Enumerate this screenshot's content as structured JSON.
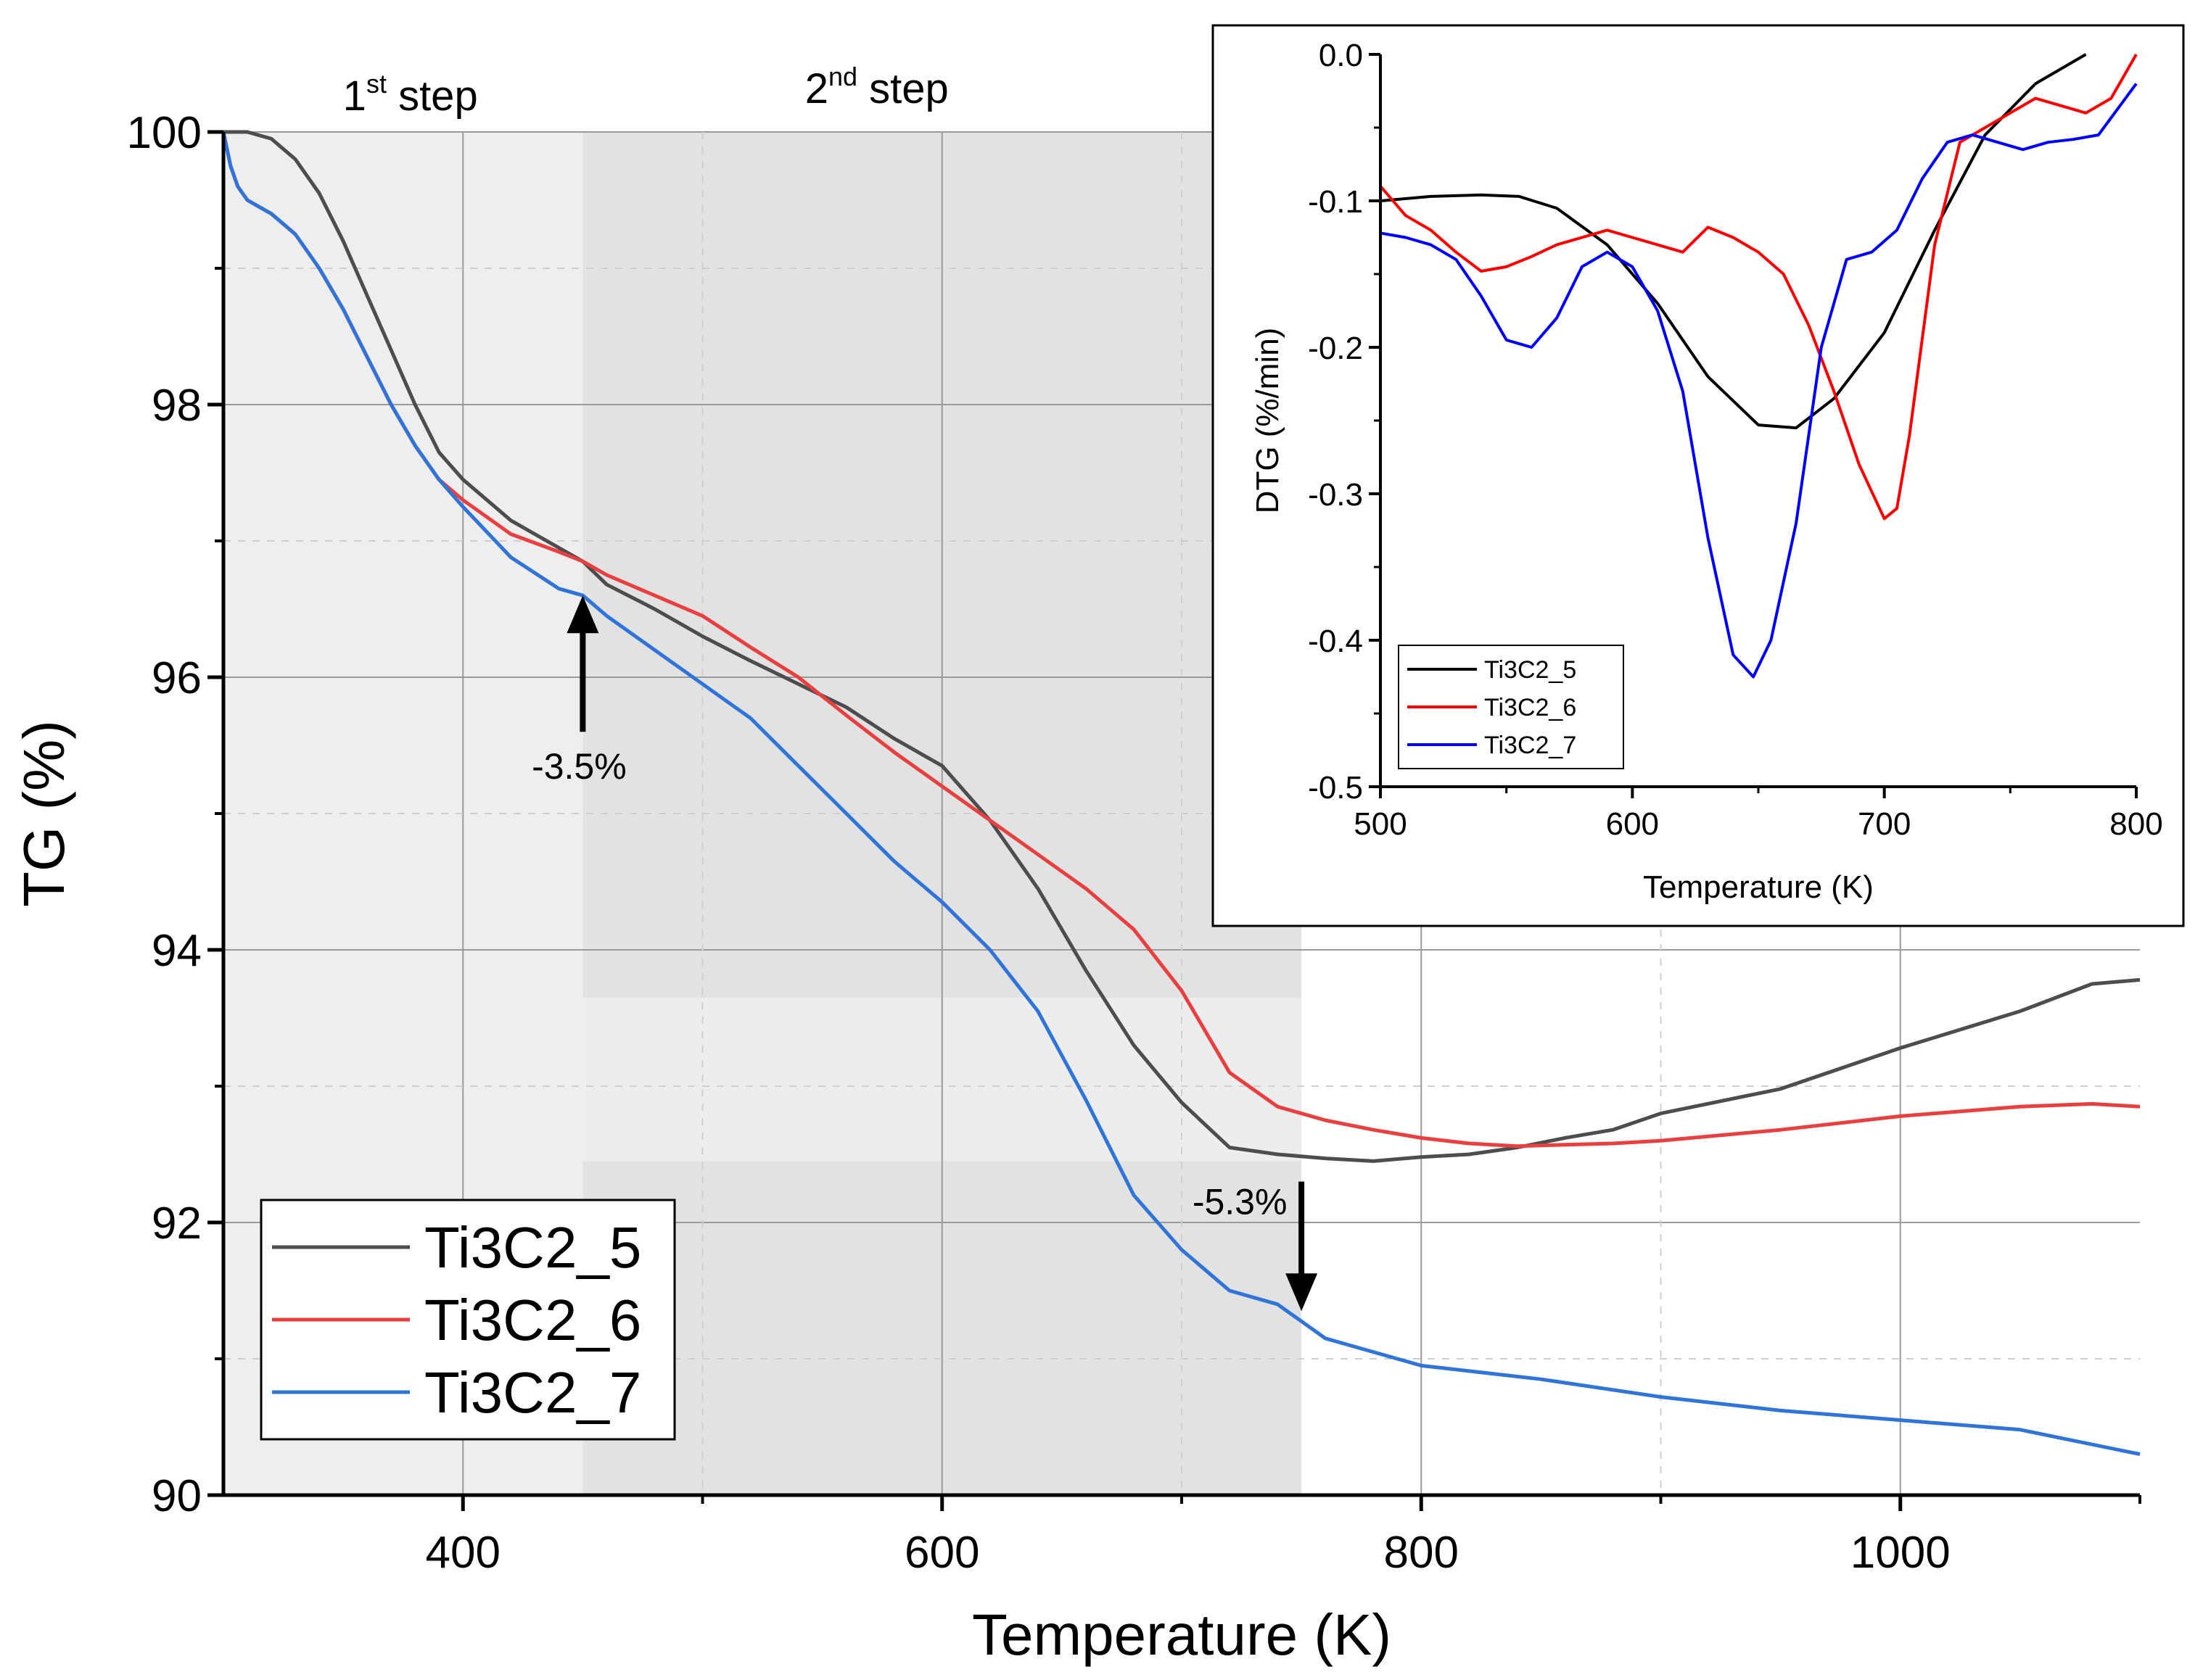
{
  "chart_data": [
    {
      "type": "line",
      "xlabel": "Temperature (K)",
      "ylabel": "TG (%)",
      "xlim": [
        300,
        1100
      ],
      "ylim": [
        90,
        100
      ],
      "xticks": [
        400,
        600,
        800,
        1000
      ],
      "yticks": [
        90,
        92,
        94,
        96,
        98,
        100
      ],
      "xtick_labels": [
        "400",
        "600",
        "800",
        "1000"
      ],
      "ytick_labels": [
        "90",
        "92",
        "94",
        "96",
        "98",
        "100"
      ],
      "grid": true,
      "legend_position": "bottom-left",
      "regions": [
        {
          "label_base": "1",
          "label_sup": "st",
          "label_rest": " step",
          "x_range": [
            300,
            450
          ],
          "color": "#eeeeee"
        },
        {
          "label_base": "2",
          "label_sup": "nd",
          "label_rest": " step",
          "x_range": [
            450,
            750
          ],
          "color": "#e2e2e2"
        }
      ],
      "annotations": [
        {
          "text": "-3.5%",
          "x": 450,
          "y_from": 95.6,
          "y_to": 96.6,
          "direction": "up"
        },
        {
          "text": "-5.3%",
          "x": 750,
          "y_from": 92.3,
          "y_to": 91.35,
          "direction": "down"
        }
      ],
      "series": [
        {
          "name": "Ti3C2_5",
          "color": "#4d4d4d",
          "x": [
            300,
            305,
            310,
            320,
            330,
            340,
            350,
            360,
            370,
            380,
            390,
            400,
            420,
            440,
            450,
            460,
            480,
            500,
            520,
            540,
            560,
            580,
            600,
            620,
            640,
            660,
            680,
            700,
            720,
            740,
            760,
            780,
            800,
            820,
            840,
            860,
            880,
            900,
            950,
            1000,
            1050,
            1080,
            1100
          ],
          "y": [
            100,
            100,
            100,
            99.95,
            99.8,
            99.55,
            99.2,
            98.8,
            98.4,
            98.0,
            97.65,
            97.45,
            97.15,
            96.95,
            96.85,
            96.68,
            96.5,
            96.3,
            96.12,
            95.95,
            95.78,
            95.55,
            95.35,
            94.95,
            94.45,
            93.85,
            93.3,
            92.88,
            92.55,
            92.5,
            92.47,
            92.45,
            92.48,
            92.5,
            92.55,
            92.62,
            92.68,
            92.8,
            92.98,
            93.28,
            93.55,
            93.75,
            93.78
          ]
        },
        {
          "name": "Ti3C2_6",
          "color": "#e84040",
          "x": [
            300,
            303,
            306,
            310,
            320,
            330,
            340,
            350,
            360,
            370,
            380,
            390,
            400,
            420,
            440,
            450,
            460,
            480,
            500,
            520,
            540,
            560,
            580,
            600,
            620,
            640,
            660,
            680,
            700,
            720,
            740,
            760,
            780,
            800,
            820,
            840,
            860,
            880,
            900,
            950,
            1000,
            1050,
            1080,
            1100
          ],
          "y": [
            100,
            99.75,
            99.6,
            99.5,
            99.4,
            99.25,
            99.0,
            98.7,
            98.35,
            98.0,
            97.7,
            97.45,
            97.3,
            97.05,
            96.92,
            96.85,
            96.75,
            96.6,
            96.45,
            96.22,
            96.0,
            95.72,
            95.45,
            95.2,
            94.95,
            94.7,
            94.45,
            94.15,
            93.7,
            93.1,
            92.85,
            92.75,
            92.68,
            92.62,
            92.58,
            92.56,
            92.57,
            92.58,
            92.6,
            92.68,
            92.78,
            92.85,
            92.87,
            92.85
          ]
        },
        {
          "name": "Ti3C2_7",
          "color": "#2f74d6",
          "x": [
            300,
            303,
            306,
            310,
            320,
            330,
            340,
            350,
            360,
            370,
            380,
            390,
            400,
            420,
            440,
            450,
            460,
            480,
            500,
            520,
            540,
            560,
            580,
            600,
            620,
            640,
            660,
            680,
            700,
            720,
            740,
            760,
            780,
            800,
            850,
            900,
            950,
            1000,
            1050,
            1100
          ],
          "y": [
            100,
            99.75,
            99.6,
            99.5,
            99.4,
            99.25,
            99.0,
            98.7,
            98.35,
            98.0,
            97.7,
            97.45,
            97.25,
            96.88,
            96.65,
            96.6,
            96.45,
            96.2,
            95.95,
            95.7,
            95.35,
            95.0,
            94.65,
            94.35,
            94.0,
            93.55,
            92.9,
            92.2,
            91.8,
            91.5,
            91.4,
            91.15,
            91.05,
            90.95,
            90.85,
            90.72,
            90.62,
            90.55,
            90.48,
            90.3
          ]
        }
      ]
    },
    {
      "type": "line",
      "xlabel": "Temperature (K)",
      "ylabel": "DTG (%/min)",
      "xlim": [
        500,
        800
      ],
      "ylim": [
        -0.5,
        0.0
      ],
      "xticks": [
        500,
        600,
        700,
        800
      ],
      "yticks": [
        0.0,
        -0.1,
        -0.2,
        -0.3,
        -0.4,
        -0.5
      ],
      "xtick_labels": [
        "500",
        "600",
        "700",
        "800"
      ],
      "ytick_labels": [
        "0.0",
        "-0.1",
        "-0.2",
        "-0.3",
        "-0.4",
        "-0.5"
      ],
      "grid": false,
      "legend_position": "bottom-left",
      "series": [
        {
          "name": "Ti3C2_5",
          "color": "#000000",
          "x": [
            500,
            520,
            540,
            555,
            570,
            590,
            610,
            630,
            650,
            665,
            680,
            700,
            720,
            740,
            760,
            780
          ],
          "y": [
            -0.1,
            -0.097,
            -0.096,
            -0.097,
            -0.105,
            -0.13,
            -0.17,
            -0.22,
            -0.253,
            -0.255,
            -0.235,
            -0.19,
            -0.12,
            -0.055,
            -0.02,
            0.0
          ]
        },
        {
          "name": "Ti3C2_6",
          "color": "#ff0000",
          "x": [
            500,
            505,
            510,
            520,
            530,
            540,
            550,
            560,
            570,
            580,
            590,
            600,
            610,
            620,
            630,
            640,
            650,
            660,
            670,
            680,
            690,
            700,
            705,
            710,
            720,
            730,
            740,
            750,
            760,
            770,
            780,
            790,
            800
          ],
          "y": [
            -0.09,
            -0.1,
            -0.11,
            -0.12,
            -0.135,
            -0.148,
            -0.145,
            -0.138,
            -0.13,
            -0.125,
            -0.12,
            -0.125,
            -0.13,
            -0.135,
            -0.118,
            -0.125,
            -0.135,
            -0.15,
            -0.185,
            -0.23,
            -0.28,
            -0.317,
            -0.31,
            -0.26,
            -0.13,
            -0.06,
            -0.05,
            -0.04,
            -0.03,
            -0.035,
            -0.04,
            -0.03,
            0.0
          ]
        },
        {
          "name": "Ti3C2_7",
          "color": "#0000ff",
          "x": [
            500,
            510,
            520,
            530,
            540,
            550,
            560,
            570,
            580,
            590,
            600,
            610,
            620,
            630,
            640,
            648,
            655,
            665,
            675,
            685,
            695,
            705,
            715,
            725,
            735,
            745,
            755,
            765,
            775,
            785,
            800
          ],
          "y": [
            -0.122,
            -0.125,
            -0.13,
            -0.14,
            -0.165,
            -0.195,
            -0.2,
            -0.18,
            -0.145,
            -0.135,
            -0.145,
            -0.175,
            -0.23,
            -0.33,
            -0.41,
            -0.425,
            -0.4,
            -0.32,
            -0.2,
            -0.14,
            -0.135,
            -0.12,
            -0.085,
            -0.06,
            -0.055,
            -0.06,
            -0.065,
            -0.06,
            -0.058,
            -0.055,
            -0.02
          ]
        }
      ]
    }
  ]
}
